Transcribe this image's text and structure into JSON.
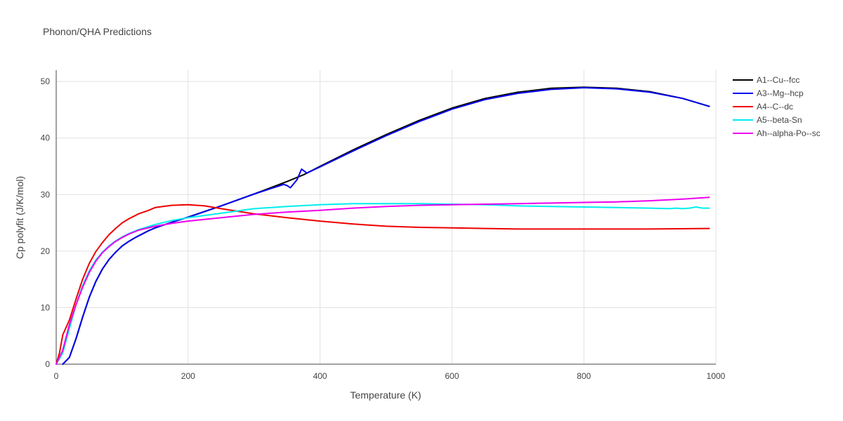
{
  "chart_data": {
    "type": "line",
    "title": "Phonon/QHA Predictions",
    "xlabel": "Temperature (K)",
    "ylabel": "Cp polyfit (J/K/mol)",
    "xlim": [
      0,
      1000
    ],
    "ylim": [
      0,
      52
    ],
    "xticks": [
      0,
      200,
      400,
      600,
      800,
      1000
    ],
    "yticks": [
      0,
      10,
      20,
      30,
      40,
      50
    ],
    "grid": true,
    "legend_position": "top-right",
    "series": [
      {
        "name": "A1--Cu--fcc",
        "color": "#000000",
        "x": [
          10,
          20,
          30,
          40,
          50,
          60,
          70,
          80,
          90,
          100,
          110,
          120,
          130,
          140,
          150,
          175,
          200,
          250,
          300,
          350,
          375,
          400,
          450,
          500,
          550,
          600,
          650,
          700,
          750,
          800,
          850,
          900,
          950,
          990
        ],
        "y": [
          0,
          1.2,
          4.5,
          8.3,
          11.8,
          14.6,
          16.8,
          18.5,
          19.8,
          20.9,
          21.7,
          22.4,
          23.0,
          23.6,
          24.1,
          25.1,
          26.0,
          28.0,
          30.1,
          32.3,
          33.5,
          35.0,
          37.9,
          40.6,
          43.1,
          45.3,
          47.0,
          48.1,
          48.8,
          49.0,
          48.8,
          48.2,
          47.0,
          45.6
        ]
      },
      {
        "name": "A3--Mg--hcp",
        "color": "#0000ee",
        "x": [
          10,
          20,
          30,
          40,
          50,
          60,
          70,
          80,
          90,
          100,
          110,
          120,
          130,
          140,
          150,
          175,
          200,
          250,
          300,
          345,
          350,
          355,
          365,
          372,
          380,
          400,
          450,
          500,
          550,
          600,
          650,
          700,
          750,
          800,
          850,
          900,
          950,
          990
        ],
        "y": [
          0,
          1.2,
          4.5,
          8.3,
          11.8,
          14.6,
          16.8,
          18.5,
          19.8,
          20.9,
          21.7,
          22.4,
          23.0,
          23.6,
          24.1,
          25.1,
          26.0,
          28.0,
          30.1,
          31.8,
          31.6,
          31.2,
          32.6,
          34.5,
          33.8,
          34.9,
          37.7,
          40.4,
          42.9,
          45.1,
          46.8,
          47.9,
          48.6,
          48.9,
          48.7,
          48.1,
          47.0,
          45.6
        ]
      },
      {
        "name": "A4--C--dc",
        "color": "#ee0000",
        "x": [
          0,
          5,
          10,
          20,
          30,
          40,
          50,
          60,
          70,
          80,
          90,
          100,
          110,
          125,
          140,
          150,
          175,
          200,
          225,
          250,
          300,
          350,
          400,
          450,
          500,
          550,
          600,
          650,
          700,
          800,
          900,
          990
        ],
        "y": [
          0,
          2.0,
          5.2,
          7.8,
          11.5,
          15.0,
          17.8,
          19.9,
          21.5,
          22.9,
          24.0,
          25.0,
          25.7,
          26.6,
          27.2,
          27.7,
          28.1,
          28.2,
          28.0,
          27.5,
          26.6,
          25.9,
          25.3,
          24.8,
          24.4,
          24.2,
          24.1,
          24.0,
          23.9,
          23.9,
          23.9,
          24.0
        ]
      },
      {
        "name": "A5--beta-Sn",
        "color": "#00eeee",
        "x": [
          0,
          10,
          20,
          30,
          40,
          50,
          60,
          70,
          80,
          90,
          100,
          110,
          125,
          150,
          175,
          200,
          250,
          300,
          350,
          400,
          450,
          500,
          550,
          600,
          650,
          700,
          750,
          800,
          850,
          900,
          930,
          940,
          950,
          960,
          970,
          980,
          990
        ],
        "y": [
          0,
          2.0,
          6.3,
          10.5,
          13.9,
          16.5,
          18.4,
          19.8,
          20.9,
          21.8,
          22.5,
          23.1,
          23.8,
          24.7,
          25.4,
          25.9,
          26.7,
          27.5,
          27.9,
          28.2,
          28.4,
          28.4,
          28.4,
          28.3,
          28.2,
          28.0,
          27.9,
          27.8,
          27.7,
          27.6,
          27.5,
          27.6,
          27.5,
          27.6,
          27.8,
          27.6,
          27.6
        ]
      },
      {
        "name": "Ah--alpha-Po--sc",
        "color": "#ee00ee",
        "x": [
          0,
          10,
          20,
          30,
          40,
          50,
          60,
          70,
          80,
          90,
          100,
          110,
          125,
          150,
          175,
          200,
          250,
          300,
          350,
          400,
          450,
          500,
          550,
          600,
          650,
          700,
          750,
          800,
          850,
          900,
          950,
          990
        ],
        "y": [
          0,
          2.5,
          7.0,
          10.5,
          13.6,
          16.2,
          18.2,
          19.7,
          20.8,
          21.7,
          22.4,
          23.0,
          23.7,
          24.4,
          24.9,
          25.3,
          25.9,
          26.5,
          26.9,
          27.2,
          27.6,
          27.9,
          28.1,
          28.2,
          28.3,
          28.4,
          28.5,
          28.6,
          28.7,
          28.9,
          29.2,
          29.5
        ]
      }
    ]
  }
}
